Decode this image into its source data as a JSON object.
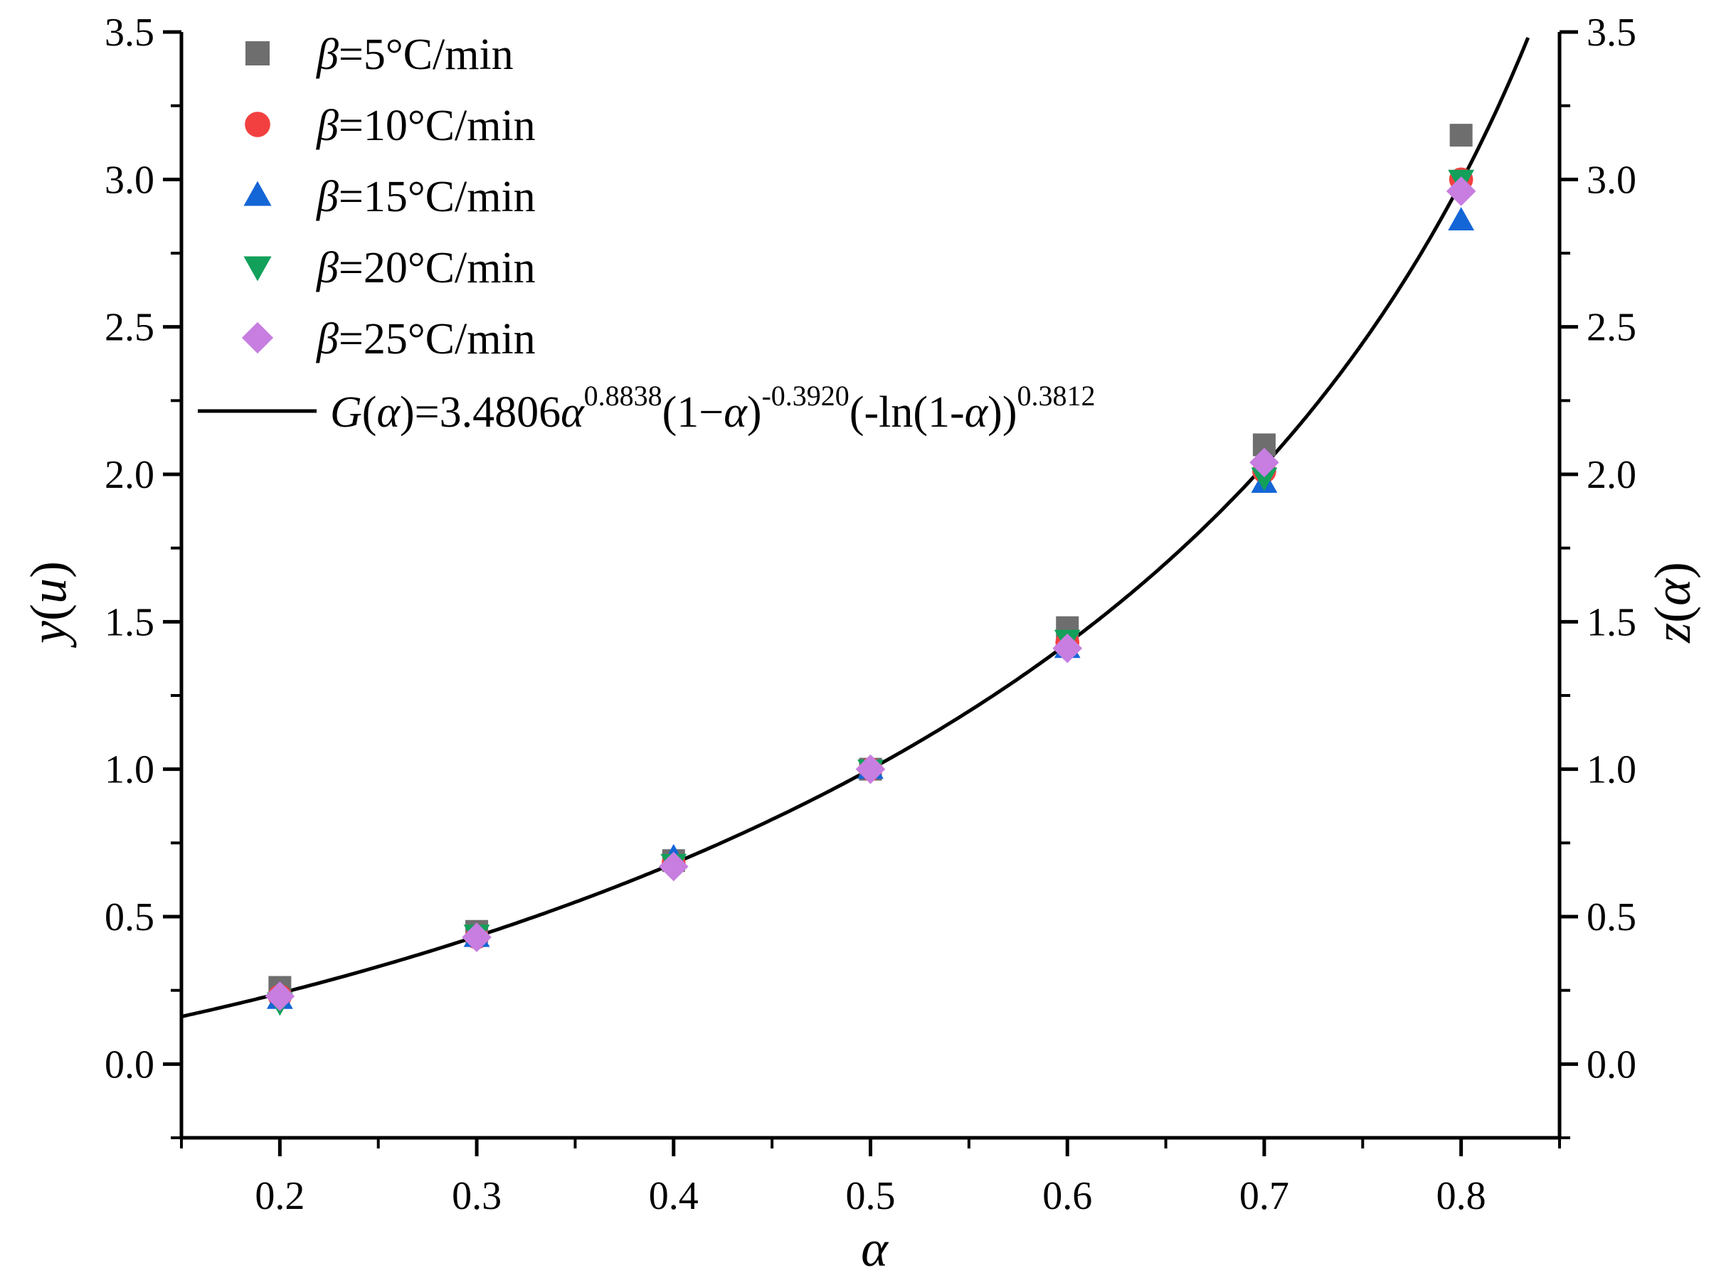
{
  "chart_data": {
    "type": "scatter",
    "title": "",
    "xlabel": "α",
    "ylabel_left": {
      "main": "y",
      "paren_open": "(",
      "var": "u",
      "paren_close": ")"
    },
    "ylabel_right": {
      "main": "z",
      "paren_open": "(",
      "var": "α",
      "paren_close": ")"
    },
    "xlim": [
      0.15,
      0.85
    ],
    "ylim": [
      -0.25,
      3.5
    ],
    "x_ticks": [
      "0.2",
      "0.3",
      "0.4",
      "0.5",
      "0.6",
      "0.7",
      "0.8"
    ],
    "x_tick_values": [
      0.2,
      0.3,
      0.4,
      0.5,
      0.6,
      0.7,
      0.8
    ],
    "y_ticks": [
      "0.0",
      "0.5",
      "1.0",
      "1.5",
      "2.0",
      "2.5",
      "3.0",
      "3.5"
    ],
    "y_tick_values": [
      0.0,
      0.5,
      1.0,
      1.5,
      2.0,
      2.5,
      3.0,
      3.5
    ],
    "grid": false,
    "legend_position": "top-left",
    "series": [
      {
        "beta": "β",
        "label": "=5°C/min",
        "marker": "square",
        "color": "#6e6e6e",
        "x": [
          0.2,
          0.3,
          0.4,
          0.5,
          0.6,
          0.7,
          0.8
        ],
        "y": [
          0.26,
          0.45,
          0.69,
          1.0,
          1.48,
          2.1,
          3.15
        ]
      },
      {
        "beta": "β",
        "label": "=10°C/min",
        "marker": "circle",
        "color": "#f24040",
        "x": [
          0.2,
          0.3,
          0.4,
          0.5,
          0.6,
          0.7,
          0.8
        ],
        "y": [
          0.23,
          0.43,
          0.68,
          1.0,
          1.43,
          2.01,
          3.0
        ]
      },
      {
        "beta": "β",
        "label": "=15°C/min",
        "marker": "triangle-up",
        "color": "#1466d6",
        "x": [
          0.2,
          0.3,
          0.4,
          0.5,
          0.6,
          0.7,
          0.8
        ],
        "y": [
          0.22,
          0.43,
          0.7,
          1.0,
          1.41,
          1.97,
          2.86
        ]
      },
      {
        "beta": "β",
        "label": "=20°C/min",
        "marker": "triangle-down",
        "color": "#12a05a",
        "x": [
          0.2,
          0.3,
          0.4,
          0.5,
          0.6,
          0.7,
          0.8
        ],
        "y": [
          0.21,
          0.44,
          0.68,
          1.0,
          1.44,
          1.99,
          3.0
        ]
      },
      {
        "beta": "β",
        "label": "=25°C/min",
        "marker": "diamond",
        "color": "#c77ee0",
        "x": [
          0.2,
          0.3,
          0.4,
          0.5,
          0.6,
          0.7,
          0.8
        ],
        "y": [
          0.23,
          0.43,
          0.67,
          1.0,
          1.41,
          2.04,
          2.96
        ]
      }
    ],
    "fit": {
      "color": "#000000",
      "label": {
        "g": "G",
        "open": "(",
        "alpha1": "α",
        "close_eq": ")=3.4806",
        "alpha2": "α",
        "exp1": "0.8838",
        "mid1": "(1−",
        "alpha3": "α",
        "close1": ")",
        "exp2": "-0.3920",
        "mid2": "(-ln(1-",
        "alpha4": "α",
        "close2": "))",
        "exp3": "0.3812"
      },
      "coefficient": 3.4806,
      "exponents": [
        0.8838,
        -0.392,
        0.3812
      ]
    }
  }
}
